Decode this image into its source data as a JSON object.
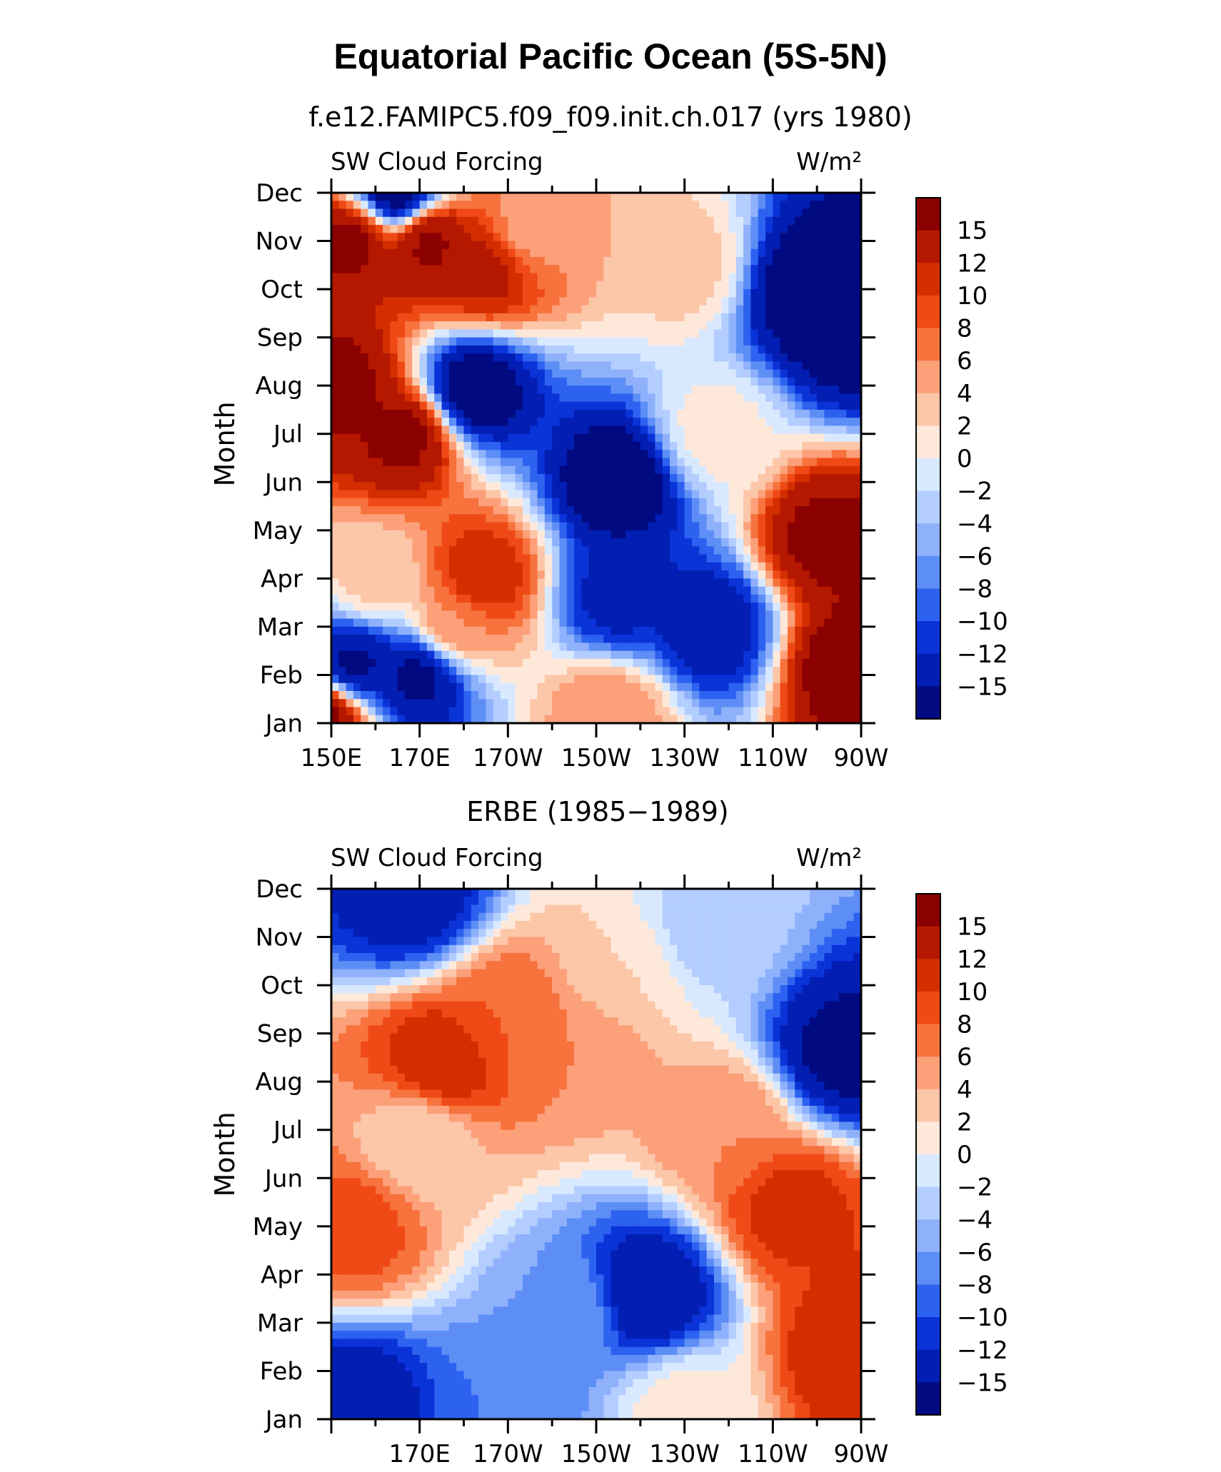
{
  "title": "Equatorial Pacific Ocean (5S-5N)",
  "colorbar": {
    "labels": [
      "15",
      "12",
      "10",
      "8",
      "6",
      "4",
      "2",
      "0",
      "−2",
      "−4",
      "−6",
      "−8",
      "−10",
      "−12",
      "−15"
    ],
    "colors": [
      "#8b0000",
      "#b41800",
      "#d42e00",
      "#ef4a15",
      "#f7723d",
      "#fca07a",
      "#fcc6a8",
      "#fee8da",
      "#d8e9ff",
      "#b3cdff",
      "#8fb1fc",
      "#5d8ef5",
      "#2d62f0",
      "#0a33d8",
      "#021eb3",
      "#010a80"
    ]
  },
  "chart_data": [
    {
      "type": "heatmap",
      "title": "f.e12.FAMIPC5.f09_f09.init.ch.017 (yrs 1980)",
      "left_label": "SW Cloud Forcing",
      "right_label": "W/m²",
      "ylabel": "Month",
      "x_ticklabels": [
        "150E",
        "170E",
        "170W",
        "150W",
        "130W",
        "110W",
        "90W"
      ],
      "y_ticklabels": [
        "Jan",
        "Feb",
        "Mar",
        "Apr",
        "May",
        "Jun",
        "Jul",
        "Aug",
        "Sep",
        "Oct",
        "Nov",
        "Dec"
      ],
      "xlim": [
        "150E",
        "90W"
      ],
      "contour_levels": [
        -15,
        -12,
        -10,
        -8,
        -6,
        -4,
        -2,
        0,
        2,
        4,
        6,
        8,
        10,
        12,
        15
      ],
      "grid": false,
      "features": [
        {
          "lon": 148,
          "month": 1.2,
          "value": 17
        },
        {
          "lon": 155,
          "month": 11.0,
          "value": 16
        },
        {
          "lon": 172,
          "month": 11.0,
          "value": 16
        },
        {
          "lon": 185,
          "month": 10.4,
          "value": 13
        },
        {
          "lon": 165,
          "month": 12.0,
          "value": -18
        },
        {
          "lon": 195,
          "month": 11.2,
          "value": 5
        },
        {
          "lon": 230,
          "month": 10.5,
          "value": 3
        },
        {
          "lon": 259,
          "month": 10.0,
          "value": -18
        },
        {
          "lon": 267,
          "month": 9.2,
          "value": -17
        },
        {
          "lon": 152,
          "month": 8.0,
          "value": 16
        },
        {
          "lon": 167,
          "month": 7.0,
          "value": 16
        },
        {
          "lon": 182,
          "month": 7.9,
          "value": -18
        },
        {
          "lon": 215,
          "month": 6.0,
          "value": -18
        },
        {
          "lon": 237,
          "month": 7.0,
          "value": 1
        },
        {
          "lon": 262,
          "month": 4.8,
          "value": 16
        },
        {
          "lon": 268,
          "month": 2.2,
          "value": 17
        },
        {
          "lon": 155,
          "month": 2.2,
          "value": -16
        },
        {
          "lon": 170,
          "month": 2.0,
          "value": -16
        },
        {
          "lon": 178,
          "month": 3.0,
          "value": 6
        },
        {
          "lon": 184,
          "month": 4.0,
          "value": 12
        },
        {
          "lon": 215,
          "month": 3.6,
          "value": -13
        },
        {
          "lon": 236,
          "month": 3.0,
          "value": -14
        },
        {
          "lon": 213,
          "month": 1.2,
          "value": 6
        },
        {
          "lon": 160,
          "month": 4.0,
          "value": 3
        }
      ]
    },
    {
      "type": "heatmap",
      "title": "ERBE (1985−1989)",
      "left_label": "SW Cloud Forcing",
      "right_label": "W/m²",
      "ylabel": "Month",
      "x_ticklabels": [
        "170E",
        "170W",
        "150W",
        "130W",
        "110W",
        "90W"
      ],
      "y_ticklabels": [
        "Jan",
        "Feb",
        "Mar",
        "Apr",
        "May",
        "Jun",
        "Jul",
        "Aug",
        "Sep",
        "Oct",
        "Nov",
        "Dec"
      ],
      "xlim": [
        "150E",
        "90W"
      ],
      "contour_levels": [
        -15,
        -12,
        -10,
        -8,
        -6,
        -4,
        -2,
        0,
        2,
        4,
        6,
        8,
        10,
        12,
        15
      ],
      "grid": false,
      "features": [
        {
          "lon": 168,
          "month": 11.8,
          "value": -14
        },
        {
          "lon": 175,
          "month": 8.4,
          "value": 12
        },
        {
          "lon": 190,
          "month": 9.4,
          "value": 8
        },
        {
          "lon": 205,
          "month": 8.8,
          "value": 6
        },
        {
          "lon": 215,
          "month": 10.3,
          "value": 2
        },
        {
          "lon": 235,
          "month": 11.2,
          "value": -3
        },
        {
          "lon": 266,
          "month": 8.6,
          "value": -16
        },
        {
          "lon": 222,
          "month": 3.6,
          "value": -15
        },
        {
          "lon": 203,
          "month": 3.2,
          "value": -6
        },
        {
          "lon": 254,
          "month": 5.4,
          "value": 11
        },
        {
          "lon": 268,
          "month": 2.4,
          "value": 12
        },
        {
          "lon": 155,
          "month": 1.3,
          "value": -14
        },
        {
          "lon": 190,
          "month": 1.2,
          "value": -8
        },
        {
          "lon": 155,
          "month": 5.0,
          "value": 9
        },
        {
          "lon": 170,
          "month": 6.8,
          "value": 2
        },
        {
          "lon": 230,
          "month": 1.2,
          "value": 1
        },
        {
          "lon": 240,
          "month": 7.0,
          "value": 6
        }
      ]
    }
  ]
}
